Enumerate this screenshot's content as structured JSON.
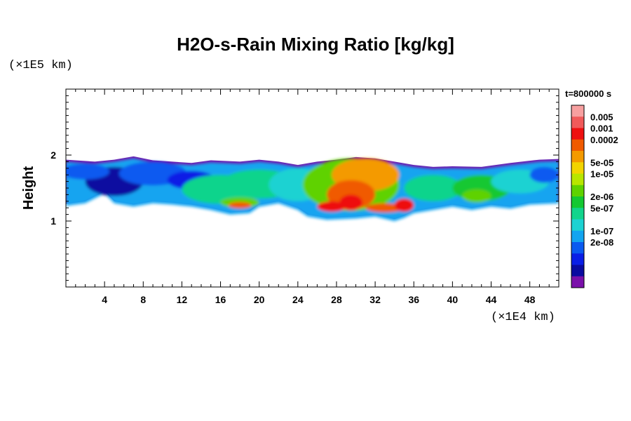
{
  "chart_data": {
    "type": "heatmap",
    "title": "H2O-s-Rain Mixing Ratio [kg/kg]",
    "ylabel": "Height",
    "y_scale_note": "(×1E5 km)",
    "x_scale_note": "(×1E4 km)",
    "time_label": "t=800000 s",
    "x_ticks": [
      4,
      8,
      12,
      16,
      20,
      24,
      28,
      32,
      36,
      40,
      44,
      48
    ],
    "y_ticks": [
      1,
      2
    ],
    "xlim": [
      0,
      51
    ],
    "ylim": [
      0,
      3
    ],
    "colorbar": {
      "colors": [
        "#f7a0a0",
        "#f05a5a",
        "#ee1010",
        "#f05a00",
        "#f49a00",
        "#f2d400",
        "#b8e600",
        "#5fd200",
        "#14c832",
        "#11d48c",
        "#1cd2d2",
        "#12a4f0",
        "#0a5af0",
        "#0a1ee6",
        "#0a0aa0",
        "#7a10aa"
      ],
      "labels": [
        "0.005",
        "0.001",
        "0.0002",
        "5e-05",
        "1e-05",
        "2e-06",
        "5e-07",
        "1e-07",
        "2e-08"
      ]
    },
    "field": {
      "band_bottom": [
        [
          0,
          1.26
        ],
        [
          2,
          1.3
        ],
        [
          4,
          1.45
        ],
        [
          5,
          1.3
        ],
        [
          7,
          1.25
        ],
        [
          9,
          1.3
        ],
        [
          11,
          1.28
        ],
        [
          13,
          1.25
        ],
        [
          15,
          1.2
        ],
        [
          17,
          1.13
        ],
        [
          19,
          1.15
        ],
        [
          20,
          1.25
        ],
        [
          22,
          1.3
        ],
        [
          24,
          1.2
        ],
        [
          25,
          1.1
        ],
        [
          27,
          1.05
        ],
        [
          30,
          1.07
        ],
        [
          32,
          1.1
        ],
        [
          34,
          1.03
        ],
        [
          35,
          1.08
        ],
        [
          36,
          1.15
        ],
        [
          38,
          1.2
        ],
        [
          40,
          1.25
        ],
        [
          42,
          1.2
        ],
        [
          44,
          1.25
        ],
        [
          46,
          1.22
        ],
        [
          48,
          1.28
        ],
        [
          51,
          1.3
        ]
      ],
      "band_top": [
        [
          0,
          1.93
        ],
        [
          3,
          1.9
        ],
        [
          5,
          1.93
        ],
        [
          7,
          1.98
        ],
        [
          9,
          1.92
        ],
        [
          11,
          1.9
        ],
        [
          13,
          1.88
        ],
        [
          15,
          1.92
        ],
        [
          18,
          1.9
        ],
        [
          20,
          1.93
        ],
        [
          22,
          1.9
        ],
        [
          24,
          1.85
        ],
        [
          26,
          1.9
        ],
        [
          28,
          1.93
        ],
        [
          30,
          1.97
        ],
        [
          32,
          1.95
        ],
        [
          34,
          1.9
        ],
        [
          36,
          1.85
        ],
        [
          38,
          1.82
        ],
        [
          40,
          1.83
        ],
        [
          43,
          1.82
        ],
        [
          46,
          1.88
        ],
        [
          49,
          1.93
        ],
        [
          51,
          1.94
        ]
      ],
      "blobs": [
        {
          "x": 5,
          "y": 1.6,
          "rx": 3,
          "ry": 0.22,
          "level": 14
        },
        {
          "x": 2,
          "y": 1.75,
          "rx": 2.5,
          "ry": 0.12,
          "level": 12
        },
        {
          "x": 9,
          "y": 1.72,
          "rx": 3.5,
          "ry": 0.18,
          "level": 12
        },
        {
          "x": 13,
          "y": 1.62,
          "rx": 2.5,
          "ry": 0.14,
          "level": 13
        },
        {
          "x": 16,
          "y": 1.48,
          "rx": 4,
          "ry": 0.22,
          "level": 9
        },
        {
          "x": 20,
          "y": 1.56,
          "rx": 4,
          "ry": 0.22,
          "level": 9
        },
        {
          "x": 24,
          "y": 1.55,
          "rx": 3,
          "ry": 0.25,
          "level": 10
        },
        {
          "x": 18,
          "y": 1.28,
          "rx": 2,
          "ry": 0.08,
          "level": 7
        },
        {
          "x": 18,
          "y": 1.24,
          "rx": 1.2,
          "ry": 0.05,
          "level": 3
        },
        {
          "x": 29.5,
          "y": 1.55,
          "rx": 5,
          "ry": 0.4,
          "level": 7
        },
        {
          "x": 31,
          "y": 1.7,
          "rx": 3.5,
          "ry": 0.25,
          "level": 4
        },
        {
          "x": 29.5,
          "y": 1.4,
          "rx": 2.5,
          "ry": 0.22,
          "level": 3
        },
        {
          "x": 29.5,
          "y": 1.28,
          "rx": 1.2,
          "ry": 0.12,
          "level": 2
        },
        {
          "x": 27.5,
          "y": 1.22,
          "rx": 1.5,
          "ry": 0.08,
          "level": 2
        },
        {
          "x": 33,
          "y": 1.2,
          "rx": 2,
          "ry": 0.07,
          "level": 3
        },
        {
          "x": 35,
          "y": 1.24,
          "rx": 1,
          "ry": 0.1,
          "level": 2
        },
        {
          "x": 38,
          "y": 1.5,
          "rx": 3,
          "ry": 0.2,
          "level": 9
        },
        {
          "x": 43,
          "y": 1.5,
          "rx": 3,
          "ry": 0.2,
          "level": 8
        },
        {
          "x": 42.5,
          "y": 1.38,
          "rx": 1.5,
          "ry": 0.1,
          "level": 7
        },
        {
          "x": 47,
          "y": 1.6,
          "rx": 3,
          "ry": 0.18,
          "level": 10
        },
        {
          "x": 49.5,
          "y": 1.7,
          "rx": 1.5,
          "ry": 0.12,
          "level": 12
        }
      ]
    }
  }
}
